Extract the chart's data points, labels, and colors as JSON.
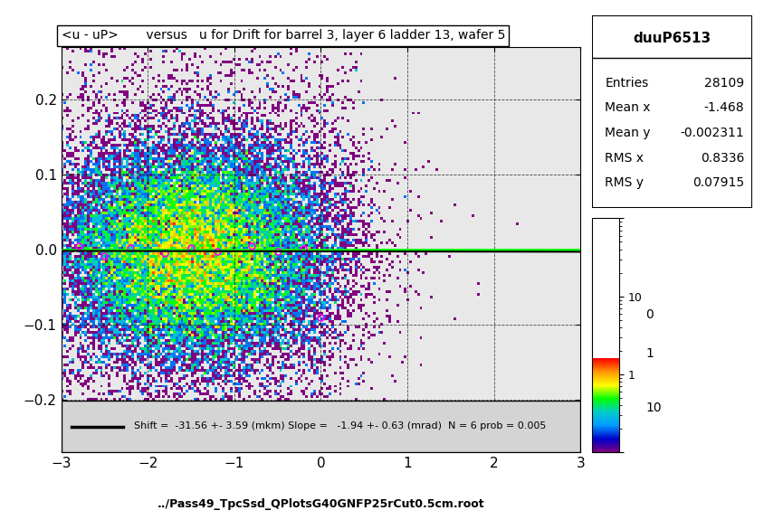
{
  "title": "<u - uP>       versus   u for Drift for barrel 3, layer 6 ladder 13, wafer 5",
  "xlabel": "../Pass49_TpcSsd_QPlotsG40GNFP25rCut0.5cm.root",
  "xlim": [
    -3,
    3
  ],
  "ylim": [
    -0.27,
    0.27
  ],
  "plot_ylim": [
    -0.27,
    0.27
  ],
  "xticks": [
    -3,
    -2,
    -1,
    0,
    1,
    2,
    3
  ],
  "yticks": [
    -0.2,
    -0.1,
    0.0,
    0.1,
    0.2
  ],
  "stats_title": "duuP6513",
  "stats_entries": "28109",
  "stats_mean_x": "-1.468",
  "stats_mean_y": "-0.002311",
  "stats_rms_x": "0.8336",
  "stats_rms_y": "0.07915",
  "colorbar_labels": [
    "0",
    "1",
    "10"
  ],
  "legend_text": "Shift =  -31.56 +- 3.59 (mkm) Slope =   -1.94 +- 0.63 (mrad)  N = 6 prob = 0.005",
  "green_line_y": 0.0,
  "fit_line_x": [
    -3.0,
    3.0
  ],
  "fit_line_y": [
    0.00582,
    -0.00582
  ],
  "background_color": "#ffffff",
  "plot_bg_color": "#ffffff"
}
